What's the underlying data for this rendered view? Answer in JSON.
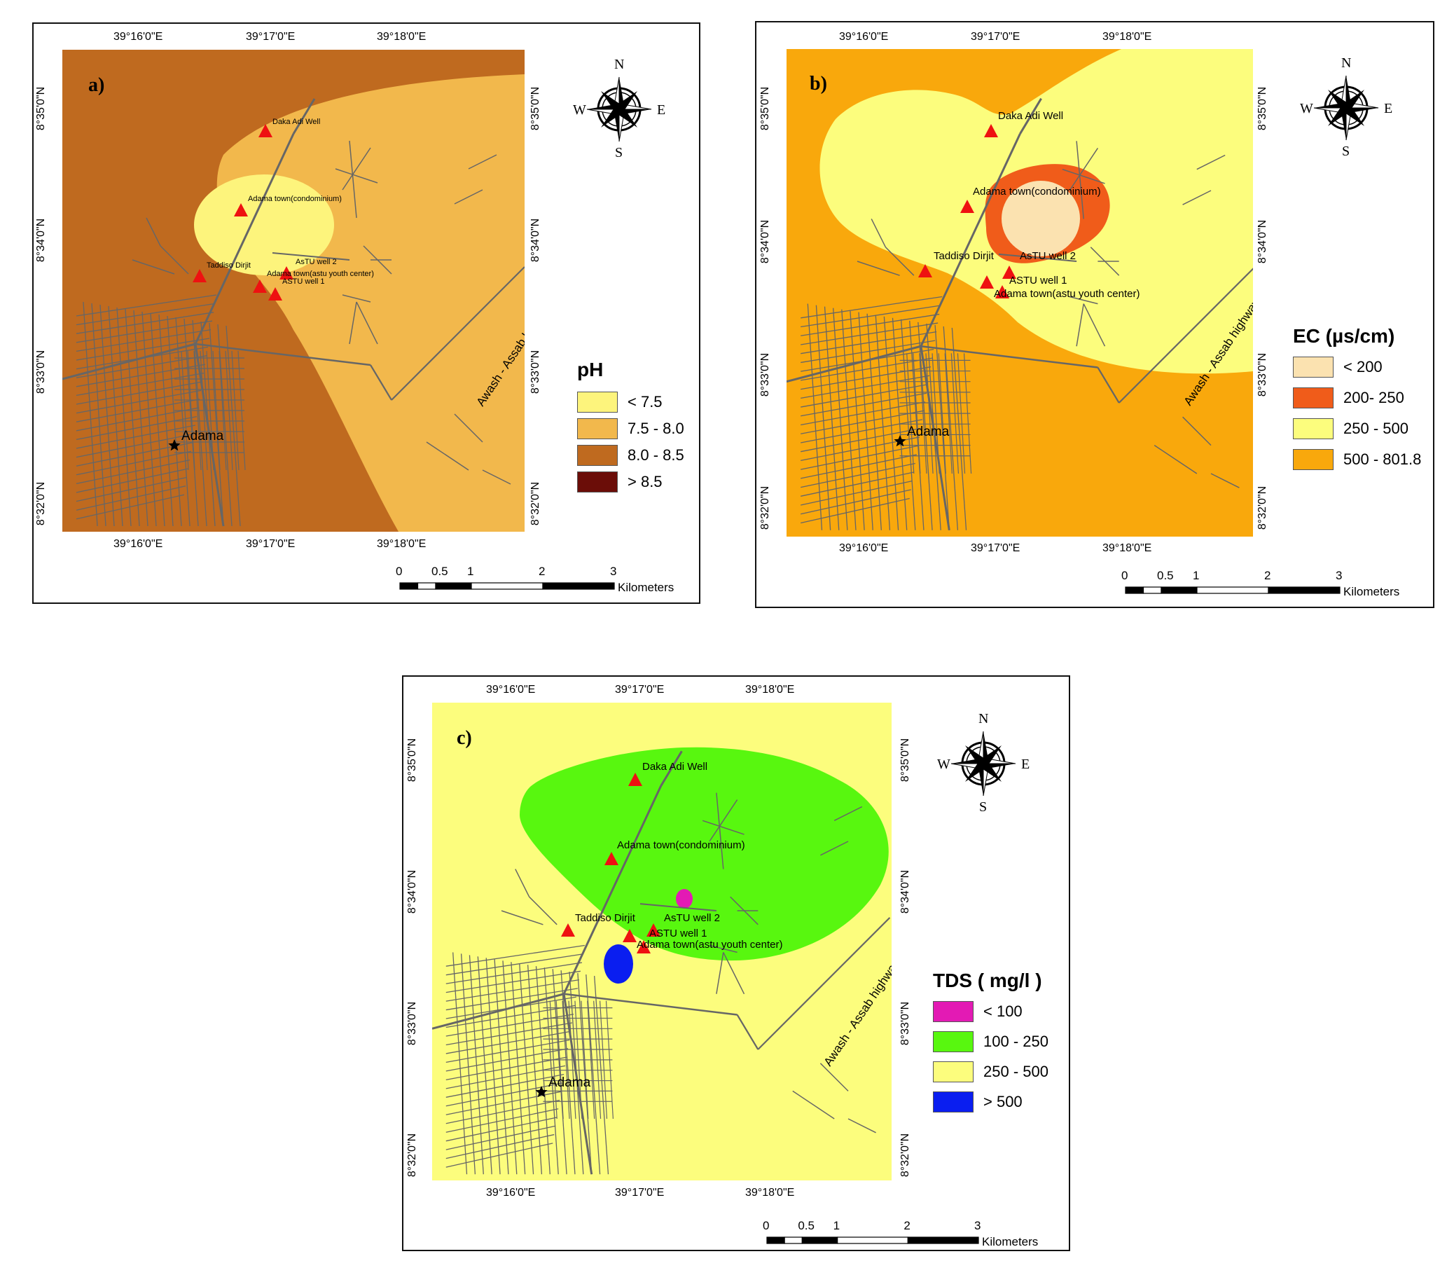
{
  "panels": [
    {
      "id": "a",
      "panel_label": "a)",
      "legend_title": "pH",
      "legend": [
        {
          "label": "< 7.5",
          "color": "#fdf47c"
        },
        {
          "label": "7.5 - 8.0",
          "color": "#f2b84c"
        },
        {
          "label": "8.0 - 8.5",
          "color": "#bf6a1f"
        },
        {
          "label": "> 8.5",
          "color": "#6b0d08"
        }
      ],
      "background_color": "#bf6a1f",
      "wells": [
        {
          "name": "Daka Adi Well"
        },
        {
          "name": "Adama town(condominium)"
        },
        {
          "name": "Taddiso Dirjit"
        },
        {
          "name": "AsTU well 2"
        },
        {
          "name": "Adama town(astu youth center)"
        },
        {
          "name": "ASTU well 1"
        }
      ]
    },
    {
      "id": "b",
      "panel_label": "b)",
      "legend_title": "EC (µs/cm)",
      "legend": [
        {
          "label": "< 200",
          "color": "#fbe2b0"
        },
        {
          "label": "200- 250",
          "color": "#f05c1a"
        },
        {
          "label": "250 - 500",
          "color": "#fcfd7d"
        },
        {
          "label": "500 - 801.8",
          "color": "#f9a80c"
        }
      ],
      "background_color": "#f9a80c",
      "wells": [
        {
          "name": "Daka Adi Well"
        },
        {
          "name": "Adama town(condominium)"
        },
        {
          "name": "Taddiso Dirjit"
        },
        {
          "name": "AsTU well 2"
        },
        {
          "name": "ASTU well 1"
        },
        {
          "name": "Adama town(astu youth center)"
        }
      ]
    },
    {
      "id": "c",
      "panel_label": "c)",
      "legend_title": "TDS ( mg/l )",
      "legend": [
        {
          "label": "< 100",
          "color": "#e31ab4"
        },
        {
          "label": "100 - 250",
          "color": "#58f70f"
        },
        {
          "label": "250 - 500",
          "color": "#fcfd7d"
        },
        {
          "label": "> 500",
          "color": "#0a1ef0"
        }
      ],
      "background_color": "#fcfd7d",
      "wells": [
        {
          "name": "Daka Adi Well"
        },
        {
          "name": "Adama town(condominium)"
        },
        {
          "name": "Taddiso Dirjit"
        },
        {
          "name": "AsTU well 2"
        },
        {
          "name": "ASTU well 1"
        },
        {
          "name": "Adama town(astu youth center)"
        }
      ]
    }
  ],
  "city_label": "Adama",
  "highway_label": "Awash - Assab highway",
  "lon_ticks": [
    "39°16'0\"E",
    "39°17'0\"E",
    "39°18'0\"E"
  ],
  "lat_ticks": [
    "8°35'0\"N",
    "8°34'0\"N",
    "8°33'0\"N",
    "8°32'0\"N"
  ],
  "compass": {
    "n": "N",
    "s": "S",
    "e": "E",
    "w": "W"
  },
  "scale": {
    "ticks": [
      "0",
      "0.5",
      "1",
      "2",
      "3"
    ],
    "unit": "Kilometers"
  },
  "colors": {
    "road": "#666666",
    "well": "#ee1111",
    "city_star": "#000000"
  }
}
